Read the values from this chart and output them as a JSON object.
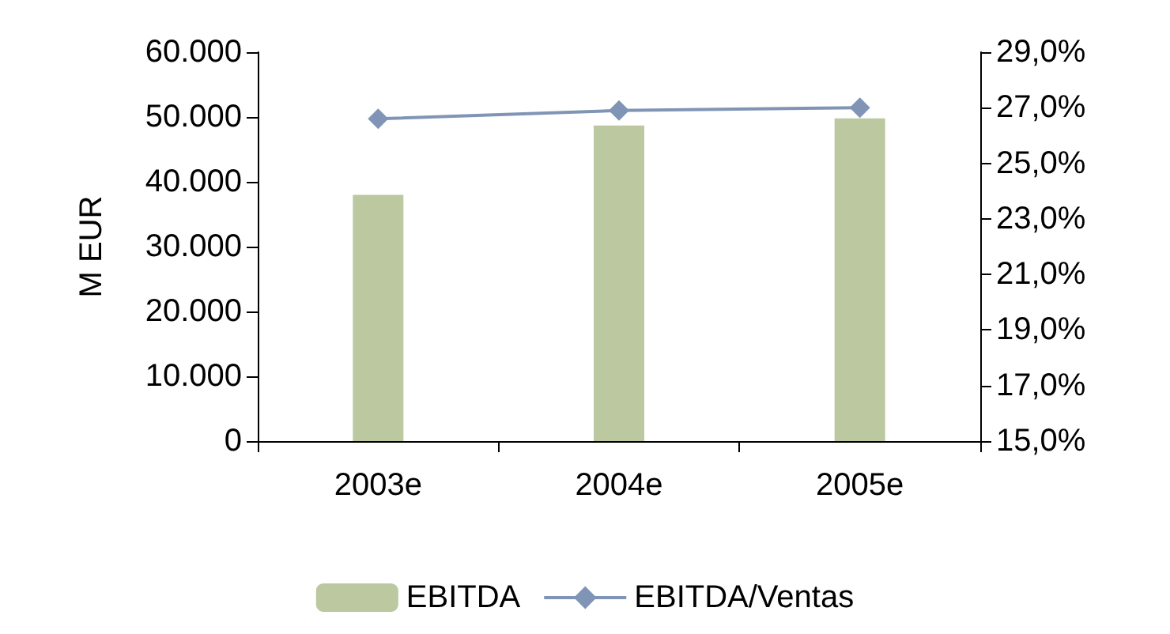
{
  "chart_data": {
    "type": "bar",
    "ylabel": "M EUR",
    "categories": [
      "2003e",
      "2004e",
      "2005e"
    ],
    "series": [
      {
        "name": "EBITDA",
        "color": "#bcc89f",
        "values": [
          38000,
          48700,
          49800
        ]
      },
      {
        "name": "EBITDA/Ventas",
        "type": "line",
        "axis": "y2",
        "color": "#8095b6",
        "values": [
          26.6,
          26.9,
          27.0
        ]
      }
    ],
    "ylim": [
      0,
      60000
    ],
    "yticks": [
      0,
      {
        "value": 10000,
        "label": "10.000"
      },
      {
        "value": 20000,
        "label": "20.000"
      },
      {
        "value": 30000,
        "label": "30.000"
      },
      {
        "value": 40000,
        "label": "40.000"
      },
      {
        "value": 50000,
        "label": "50.000"
      },
      {
        "value": 60000,
        "label": "60.000"
      }
    ],
    "y2lim": [
      15,
      29
    ],
    "y2ticks": [
      {
        "value": 15,
        "label": "15,0%"
      },
      {
        "value": 17,
        "label": "17,0%"
      },
      {
        "value": 19,
        "label": "19,0%"
      },
      {
        "value": 21,
        "label": "21,0%"
      },
      {
        "value": 23,
        "label": "23,0%"
      },
      {
        "value": 25,
        "label": "25,0%"
      },
      {
        "value": 27,
        "label": "27,0%"
      },
      {
        "value": 29,
        "label": "29,0%"
      }
    ],
    "grid": false,
    "legend": "bottom",
    "marker": "diamond"
  }
}
